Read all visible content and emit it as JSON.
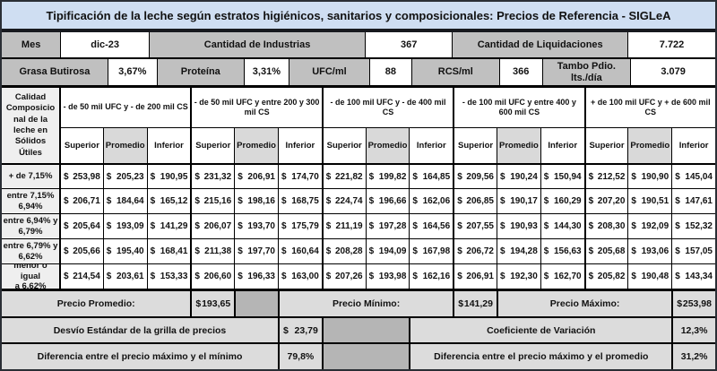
{
  "currency_symbol": "$",
  "title": "Tipificación de la leche según estratos higiénicos, sanitarios y composicionales: Precios de Referencia - SIGLeA",
  "info_rows": [
    {
      "cells": [
        {
          "label": "Mes",
          "value": "dic-23"
        },
        {
          "label": "Cantidad de Industrias",
          "value": "367"
        },
        {
          "label": "Cantidad de Liquidaciones",
          "value": "7.722"
        }
      ]
    },
    {
      "cells": [
        {
          "label": "Grasa Butirosa",
          "value": "3,67%"
        },
        {
          "label": "Proteína",
          "value": "3,31%"
        },
        {
          "label": "UFC/ml",
          "value": "88"
        },
        {
          "label": "RCS/ml",
          "value": "366"
        },
        {
          "label": "Tambo Pdio. lts./día",
          "value": "3.079"
        }
      ]
    }
  ],
  "matrix": {
    "corner_header": "Calidad Composicional de la leche en Sólidos Útiles",
    "column_groups": [
      "- de 50 mil UFC y - de 200 mil CS",
      "- de 50 mil UFC y entre 200 y 300 mil CS",
      "- de 100 mil UFC y - de 400 mil CS",
      "- de 100 mil UFC y entre 400 y 600 mil CS",
      "+ de 100 mil UFC y + de 600 mil CS"
    ],
    "subheaders": [
      "Superior",
      "Promedio",
      "Inferior"
    ],
    "rows": [
      {
        "label": "+ de 7,15%",
        "values": [
          "253,98",
          "205,23",
          "190,95",
          "231,32",
          "206,91",
          "174,70",
          "221,82",
          "199,82",
          "164,85",
          "209,56",
          "190,24",
          "150,94",
          "212,52",
          "190,90",
          "145,04"
        ]
      },
      {
        "label": "entre 7,15%\n6,94%",
        "values": [
          "206,71",
          "184,64",
          "165,12",
          "215,16",
          "198,16",
          "168,75",
          "224,74",
          "196,66",
          "162,06",
          "206,85",
          "190,17",
          "160,29",
          "207,20",
          "190,51",
          "147,61"
        ]
      },
      {
        "label": "entre 6,94% y\n6,79%",
        "values": [
          "205,64",
          "193,09",
          "141,29",
          "206,07",
          "193,70",
          "175,79",
          "211,19",
          "197,28",
          "164,56",
          "207,55",
          "190,93",
          "144,30",
          "208,30",
          "192,09",
          "152,32"
        ]
      },
      {
        "label": "entre 6,79% y\n6,62%",
        "values": [
          "205,66",
          "195,40",
          "168,41",
          "211,38",
          "197,70",
          "160,64",
          "208,28",
          "194,09",
          "167,98",
          "206,72",
          "194,28",
          "156,63",
          "205,68",
          "193,06",
          "157,05"
        ]
      },
      {
        "label": "menor o igual\na 6,62%",
        "values": [
          "214,54",
          "203,61",
          "153,33",
          "206,60",
          "196,33",
          "163,00",
          "207,26",
          "193,98",
          "162,16",
          "206,91",
          "192,30",
          "162,70",
          "205,82",
          "190,48",
          "143,34"
        ]
      }
    ]
  },
  "summary": {
    "rows": [
      {
        "items": [
          {
            "label": "Precio Promedio:",
            "value": "193,65",
            "currency": true
          },
          {
            "label": "Precio Mínimo:",
            "value": "141,29",
            "currency": true
          },
          {
            "label": "Precio Máximo:",
            "value": "253,98",
            "currency": true
          }
        ]
      },
      {
        "items": [
          {
            "label": "Desvío Estándar de la grilla de precios",
            "value": "23,79",
            "currency": true
          },
          {
            "label": "Coeficiente de Variación",
            "value": "12,3%",
            "currency": false
          }
        ]
      },
      {
        "items": [
          {
            "label": "Diferencia entre el precio máximo y el mínimo",
            "value": "79,8%",
            "currency": false
          },
          {
            "label": "Diferencia entre el precio máximo y el promedio",
            "value": "31,2%",
            "currency": false
          }
        ]
      }
    ]
  },
  "colors": {
    "title_bg": "#cfdef2",
    "label_gray": "#c0c0c0",
    "row_label_bg": "#efefef",
    "promedio_bg": "#d9d9d9",
    "light_gray": "#dcdcdc",
    "spacer_gray": "#b5b5b5"
  }
}
